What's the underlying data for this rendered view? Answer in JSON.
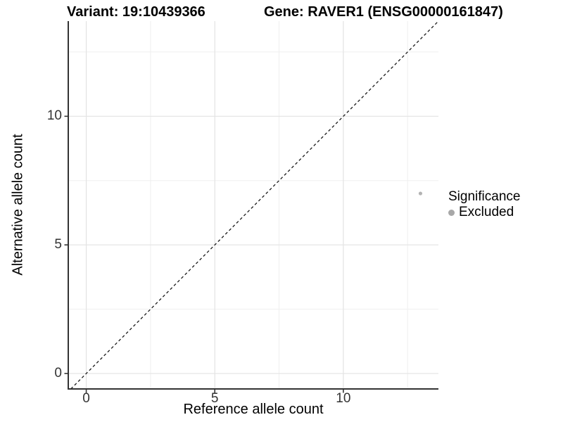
{
  "chart_data": {
    "type": "scatter",
    "title_left": "Variant: 19:10439366",
    "title_right": "Gene: RAVER1 (ENSG00000161847)",
    "xlabel": "Reference allele count",
    "ylabel": "Alternative allele count",
    "xlim": [
      -0.7,
      13.7
    ],
    "ylim": [
      -0.6,
      13.7
    ],
    "x_major_ticks": [
      0,
      5,
      10
    ],
    "y_major_ticks": [
      0,
      5,
      10
    ],
    "x_minor_ticks": [
      2.5,
      7.5,
      12.5
    ],
    "y_minor_ticks": [
      2.5,
      7.5,
      12.5
    ],
    "grid": "major+minor",
    "series": [
      {
        "name": "Excluded",
        "color": "#b3b3b3",
        "points": [
          {
            "x": 13,
            "y": 7
          }
        ]
      }
    ],
    "identity_line": {
      "equation": "y = x",
      "style": "dashed",
      "color": "#1a1a1a"
    },
    "legend": {
      "position": "right",
      "title": "Significance",
      "entries": [
        "Excluded"
      ],
      "key_color": "#a8a8a8"
    }
  },
  "colors": {
    "background": "#ffffff",
    "grid_major": "#e3e3e3",
    "grid_minor": "#efefef",
    "axis_line": "#333333",
    "tick_mark": "#333333",
    "tick_label": "#333333",
    "point": "#b3b3b3"
  }
}
